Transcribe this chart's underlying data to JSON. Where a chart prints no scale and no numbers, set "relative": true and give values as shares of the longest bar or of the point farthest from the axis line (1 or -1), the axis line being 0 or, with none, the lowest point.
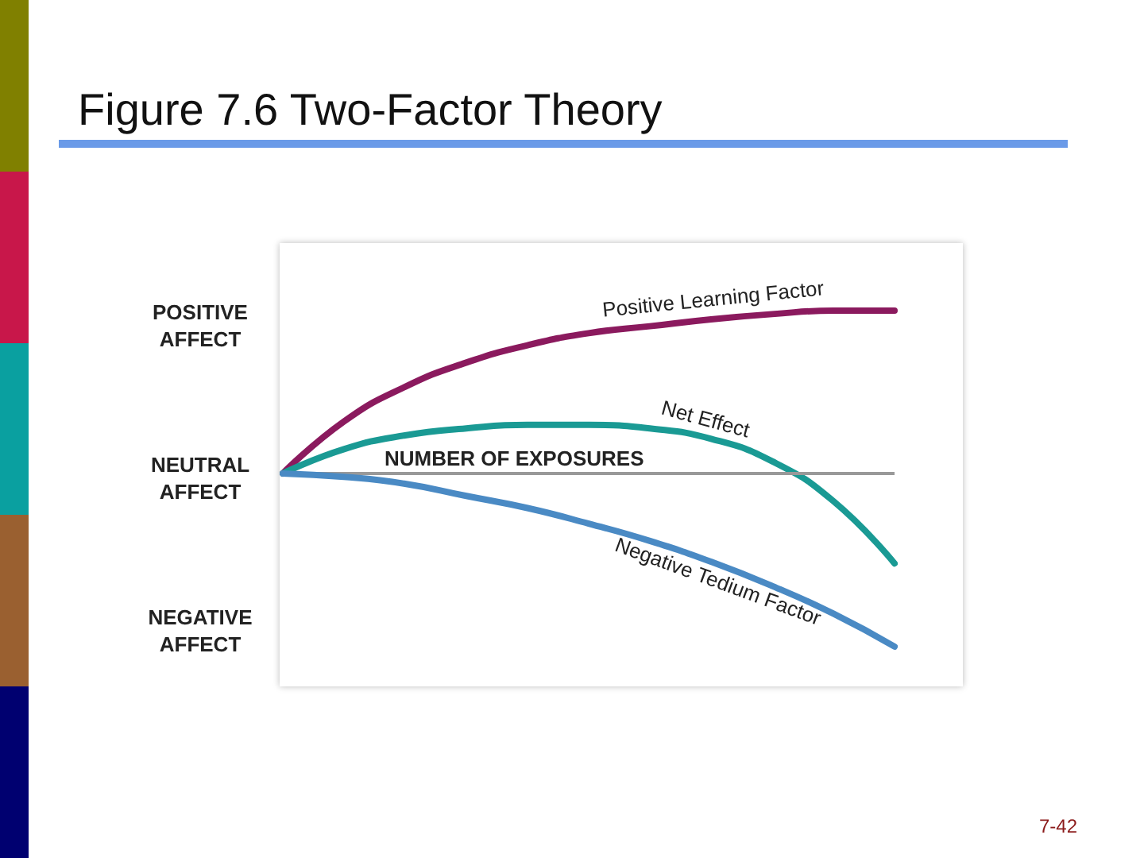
{
  "chart_data": {
    "type": "line",
    "title": "Figure 7.6 Two-Factor Theory",
    "relative": true,
    "categories": [
      null,
      null,
      null,
      null,
      null,
      null,
      null,
      null,
      null,
      null,
      null
    ],
    "series": [
      {
        "name": "Positive Learning Factor",
        "color": "#8b1a5e",
        "values": [
          0,
          0.3,
          0.5,
          0.64,
          0.74,
          0.81,
          0.85,
          0.89,
          0.92,
          0.94,
          0.94
        ]
      },
      {
        "name": "Net Effect",
        "color": "#1a9a94",
        "values": [
          0,
          0.14,
          0.22,
          0.26,
          0.28,
          0.28,
          0.26,
          0.2,
          0.07,
          -0.16,
          -0.52
        ]
      },
      {
        "name": "Negative Tedium Factor",
        "color": "#4a8ac4",
        "values": [
          0,
          -0.02,
          -0.06,
          -0.13,
          -0.2,
          -0.29,
          -0.39,
          -0.51,
          -0.65,
          -0.81,
          -1
        ]
      }
    ],
    "ref_lines": [
      {
        "axis": "y",
        "value": 0,
        "label": "NUMBER OF EXPOSURES",
        "color": "#999999"
      }
    ],
    "annotations": [
      "POSITIVE AFFECT",
      "NEUTRAL AFFECT",
      "NEGATIVE AFFECT",
      "7-42"
    ],
    "grid": false,
    "legend": false,
    "marker": "none",
    "line_style": "solid"
  }
}
